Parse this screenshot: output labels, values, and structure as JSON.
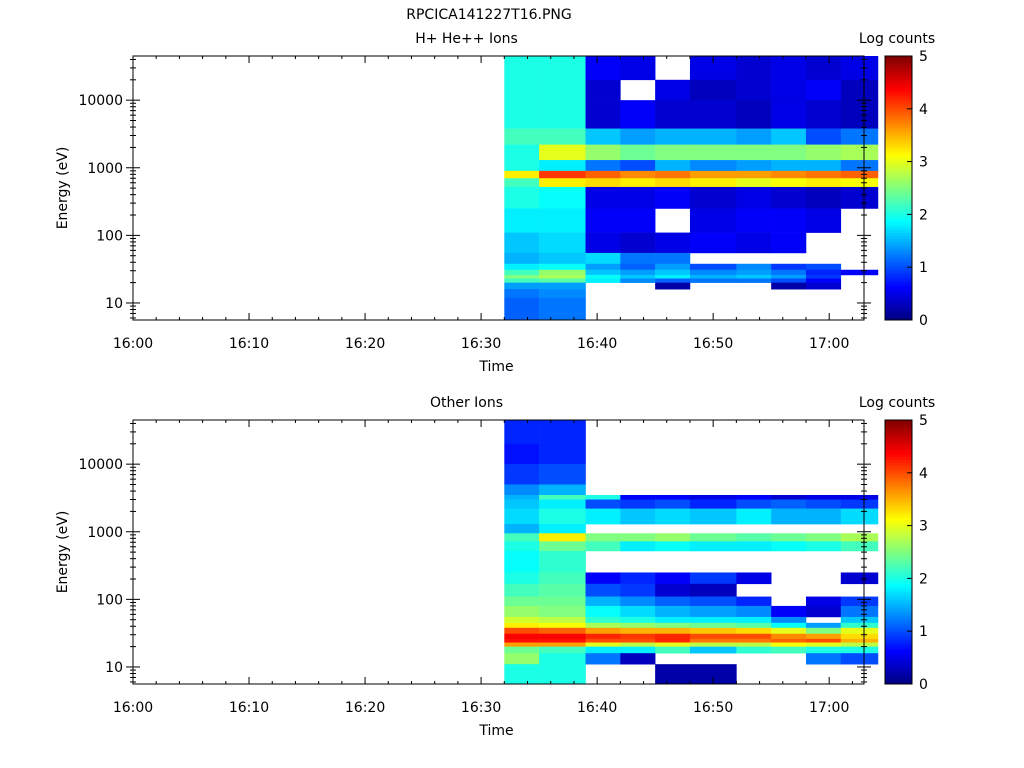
{
  "figure": {
    "title": "RPCICA141227T16.PNG"
  },
  "chart_data": [
    {
      "type": "heatmap",
      "title": "H+ He++ Ions",
      "xlabel": "Time",
      "ylabel": "Energy (eV)",
      "yscale": "log",
      "ylim": [
        5.6,
        45000
      ],
      "xlim": [
        "16:00",
        "17:03"
      ],
      "xticks": [
        "16:00",
        "16:10",
        "16:20",
        "16:30",
        "16:40",
        "16:50",
        "17:00"
      ],
      "yticks": [
        "10",
        "100",
        "1000",
        "10000"
      ],
      "colorbar": {
        "label": "Log counts",
        "range": [
          0,
          5
        ],
        "ticks": [
          "0",
          "1",
          "2",
          "3",
          "4",
          "5"
        ]
      },
      "columns": [
        "16:32",
        "16:35",
        "16:39",
        "16:42",
        "16:45",
        "16:48",
        "16:52",
        "16:55",
        "16:58",
        "17:01"
      ],
      "rows_approx": [
        {
          "energy_range": [
            20000,
            45000
          ],
          "log_counts": [
            2.0,
            2.0,
            0.6,
            0.5,
            null,
            0.5,
            0.4,
            0.5,
            0.4,
            0.5
          ]
        },
        {
          "energy_range": [
            10000,
            20000
          ],
          "log_counts": [
            2.0,
            2.0,
            0.4,
            null,
            0.5,
            0.3,
            0.4,
            0.5,
            0.6,
            0.3
          ]
        },
        {
          "energy_range": [
            3800,
            10000
          ],
          "log_counts": [
            2.0,
            2.0,
            0.4,
            0.6,
            0.4,
            0.4,
            0.3,
            0.5,
            0.4,
            0.3
          ]
        },
        {
          "energy_range": [
            2200,
            3800
          ],
          "log_counts": [
            2.2,
            2.2,
            1.6,
            1.4,
            1.5,
            1.5,
            1.4,
            1.6,
            1.0,
            1.2
          ]
        },
        {
          "energy_range": [
            1300,
            2200
          ],
          "log_counts": [
            2.0,
            3.0,
            2.6,
            2.4,
            2.5,
            2.5,
            2.5,
            2.5,
            2.6,
            2.7
          ]
        },
        {
          "energy_range": [
            900,
            1300
          ],
          "log_counts": [
            2.0,
            1.8,
            1.2,
            1.0,
            1.5,
            1.3,
            1.4,
            1.5,
            1.5,
            1.2
          ]
        },
        {
          "energy_range": [
            700,
            900
          ],
          "log_counts": [
            3.2,
            4.1,
            3.9,
            3.7,
            3.8,
            3.6,
            3.6,
            3.7,
            3.8,
            3.9
          ]
        },
        {
          "energy_range": [
            520,
            700
          ],
          "log_counts": [
            2.2,
            3.2,
            3.3,
            3.2,
            3.3,
            3.2,
            3.0,
            3.1,
            3.2,
            3.1
          ]
        },
        {
          "energy_range": [
            250,
            520
          ],
          "log_counts": [
            2.0,
            1.9,
            0.5,
            0.5,
            0.6,
            0.4,
            0.5,
            0.4,
            0.3,
            0.4
          ]
        },
        {
          "energy_range": [
            110,
            250
          ],
          "log_counts": [
            1.8,
            1.8,
            0.6,
            0.6,
            null,
            0.5,
            0.6,
            0.6,
            0.5,
            null
          ]
        },
        {
          "energy_range": [
            55,
            110
          ],
          "log_counts": [
            1.6,
            1.7,
            0.5,
            0.4,
            0.5,
            0.6,
            0.5,
            0.6,
            null,
            null
          ]
        },
        {
          "energy_range": [
            38,
            55
          ],
          "log_counts": [
            1.5,
            1.6,
            1.7,
            1.2,
            1.2,
            null,
            null,
            null,
            null,
            null
          ]
        },
        {
          "energy_range": [
            31,
            38
          ],
          "log_counts": [
            1.8,
            1.9,
            1.4,
            1.1,
            1.4,
            1.0,
            1.3,
            0.9,
            1.0,
            null
          ]
        },
        {
          "energy_range": [
            26,
            31
          ],
          "log_counts": [
            2.2,
            2.6,
            1.6,
            1.4,
            1.6,
            1.3,
            1.4,
            1.2,
            0.8,
            0.6
          ]
        },
        {
          "energy_range": [
            23,
            26
          ],
          "log_counts": [
            2.5,
            2.7,
            1.9,
            1.6,
            1.8,
            1.5,
            1.6,
            1.4,
            0.9,
            null
          ]
        },
        {
          "energy_range": [
            20,
            23
          ],
          "log_counts": [
            2.2,
            2.3,
            1.8,
            1.3,
            1.1,
            1.2,
            1.2,
            1.0,
            0.6,
            null
          ]
        },
        {
          "energy_range": [
            16,
            20
          ],
          "log_counts": [
            1.4,
            1.4,
            null,
            null,
            0.2,
            null,
            null,
            0.2,
            0.4,
            null
          ]
        },
        {
          "energy_range": [
            12,
            16
          ],
          "log_counts": [
            1.2,
            1.3,
            null,
            null,
            null,
            null,
            null,
            null,
            null,
            null
          ]
        },
        {
          "energy_range": [
            5.6,
            12
          ],
          "log_counts": [
            1.1,
            1.2,
            null,
            null,
            null,
            null,
            null,
            null,
            null,
            null
          ]
        }
      ]
    },
    {
      "type": "heatmap",
      "title": "Other Ions",
      "xlabel": "Time",
      "ylabel": "Energy (eV)",
      "yscale": "log",
      "ylim": [
        5.6,
        45000
      ],
      "xlim": [
        "16:00",
        "17:03"
      ],
      "xticks": [
        "16:00",
        "16:10",
        "16:20",
        "16:30",
        "16:40",
        "16:50",
        "17:00"
      ],
      "yticks": [
        "10",
        "100",
        "1000",
        "10000"
      ],
      "colorbar": {
        "label": "Log counts",
        "range": [
          0,
          5
        ],
        "ticks": [
          "0",
          "1",
          "2",
          "3",
          "4",
          "5"
        ]
      },
      "columns": [
        "16:32",
        "16:35",
        "16:39",
        "16:42",
        "16:45",
        "16:48",
        "16:52",
        "16:55",
        "16:58",
        "17:01"
      ],
      "rows_approx": [
        {
          "energy_range": [
            20000,
            45000
          ],
          "log_counts": [
            0.8,
            0.8,
            null,
            null,
            null,
            null,
            null,
            null,
            null,
            null
          ]
        },
        {
          "energy_range": [
            10000,
            20000
          ],
          "log_counts": [
            0.7,
            0.8,
            null,
            null,
            null,
            null,
            null,
            null,
            null,
            null
          ]
        },
        {
          "energy_range": [
            5000,
            10000
          ],
          "log_counts": [
            0.9,
            1.0,
            null,
            null,
            null,
            null,
            null,
            null,
            null,
            null
          ]
        },
        {
          "energy_range": [
            3500,
            5000
          ],
          "log_counts": [
            1.3,
            1.5,
            null,
            null,
            null,
            null,
            null,
            null,
            null,
            null
          ]
        },
        {
          "energy_range": [
            3000,
            3500
          ],
          "log_counts": [
            1.5,
            2.2,
            2.0,
            0.6,
            0.6,
            0.5,
            0.6,
            0.4,
            0.5,
            0.5
          ]
        },
        {
          "energy_range": [
            2200,
            3000
          ],
          "log_counts": [
            1.6,
            1.8,
            1.0,
            0.9,
            1.0,
            0.8,
            1.0,
            1.1,
            1.0,
            0.9
          ]
        },
        {
          "energy_range": [
            1300,
            2200
          ],
          "log_counts": [
            1.7,
            2.0,
            1.8,
            1.6,
            1.7,
            1.6,
            1.8,
            1.5,
            1.5,
            1.7
          ]
        },
        {
          "energy_range": [
            950,
            1300
          ],
          "log_counts": [
            1.5,
            1.8,
            null,
            null,
            null,
            null,
            null,
            null,
            null,
            null
          ]
        },
        {
          "energy_range": [
            720,
            950
          ],
          "log_counts": [
            2.2,
            3.2,
            2.5,
            2.5,
            2.6,
            2.4,
            2.3,
            2.4,
            2.5,
            2.7
          ]
        },
        {
          "energy_range": [
            520,
            720
          ],
          "log_counts": [
            2.0,
            2.4,
            2.2,
            1.8,
            1.9,
            1.8,
            1.8,
            1.9,
            2.0,
            2.2
          ]
        },
        {
          "energy_range": [
            250,
            520
          ],
          "log_counts": [
            1.9,
            2.1,
            null,
            null,
            null,
            null,
            null,
            null,
            null,
            null
          ]
        },
        {
          "energy_range": [
            170,
            250
          ],
          "log_counts": [
            2.0,
            2.2,
            0.6,
            0.8,
            0.6,
            0.9,
            0.5,
            null,
            null,
            0.4
          ]
        },
        {
          "energy_range": [
            110,
            170
          ],
          "log_counts": [
            2.2,
            2.3,
            1.0,
            0.9,
            0.4,
            0.3,
            null,
            null,
            null,
            null
          ]
        },
        {
          "energy_range": [
            80,
            110
          ],
          "log_counts": [
            2.4,
            2.4,
            1.5,
            1.3,
            1.1,
            1.0,
            0.8,
            null,
            0.5,
            0.9
          ]
        },
        {
          "energy_range": [
            55,
            80
          ],
          "log_counts": [
            2.6,
            2.5,
            1.9,
            1.7,
            1.5,
            1.4,
            1.3,
            0.6,
            0.4,
            1.2
          ]
        },
        {
          "energy_range": [
            45,
            55
          ],
          "log_counts": [
            2.9,
            2.8,
            2.1,
            2.0,
            1.8,
            1.8,
            1.8,
            1.3,
            null,
            1.6
          ]
        },
        {
          "energy_range": [
            38,
            45
          ],
          "log_counts": [
            3.2,
            3.1,
            2.7,
            2.6,
            2.5,
            2.4,
            2.3,
            1.9,
            1.4,
            2.1
          ]
        },
        {
          "energy_range": [
            31,
            38
          ],
          "log_counts": [
            4.0,
            3.9,
            3.6,
            3.5,
            3.5,
            3.4,
            3.3,
            3.0,
            2.5,
            3.0
          ]
        },
        {
          "energy_range": [
            26,
            31
          ],
          "log_counts": [
            4.4,
            4.4,
            4.2,
            4.1,
            4.2,
            4.0,
            4.0,
            3.7,
            3.6,
            3.3
          ]
        },
        {
          "energy_range": [
            23,
            26
          ],
          "log_counts": [
            4.3,
            4.3,
            4.0,
            4.0,
            4.2,
            3.8,
            3.8,
            3.9,
            4.0,
            3.5
          ]
        },
        {
          "energy_range": [
            20,
            23
          ],
          "log_counts": [
            3.6,
            3.6,
            3.0,
            2.8,
            3.0,
            2.8,
            2.8,
            3.1,
            3.0,
            2.8
          ]
        },
        {
          "energy_range": [
            16,
            20
          ],
          "log_counts": [
            2.4,
            2.2,
            1.8,
            1.8,
            2.2,
            1.6,
            2.1,
            2.2,
            2.0,
            2.0
          ]
        },
        {
          "energy_range": [
            11,
            16
          ],
          "log_counts": [
            2.6,
            2.0,
            1.2,
            0.3,
            null,
            null,
            null,
            null,
            1.2,
            1.0
          ]
        },
        {
          "energy_range": [
            8,
            11
          ],
          "log_counts": [
            2.0,
            2.0,
            null,
            null,
            0.2,
            0.2,
            null,
            null,
            null,
            null
          ]
        },
        {
          "energy_range": [
            5.6,
            8
          ],
          "log_counts": [
            2.0,
            2.0,
            null,
            null,
            0.2,
            0.2,
            null,
            null,
            null,
            null
          ]
        }
      ]
    }
  ]
}
